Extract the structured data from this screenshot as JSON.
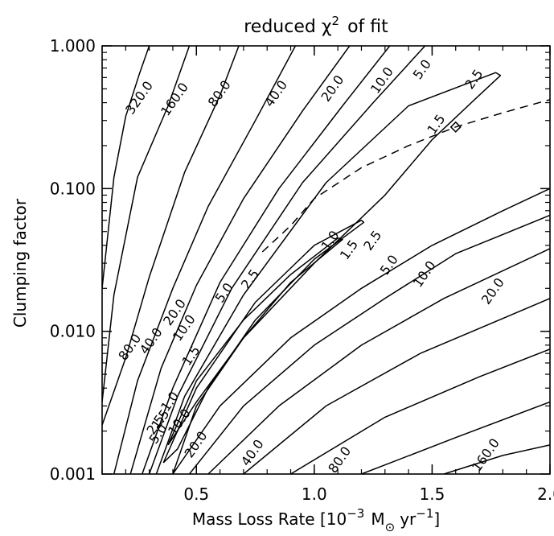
{
  "chart_data": {
    "type": "contour",
    "title": "reduced χ² of fit",
    "title_parts": {
      "base": "reduced χ",
      "sup": "2",
      "tail": "of fit"
    },
    "xlabel_parts": {
      "pre": "Mass Loss Rate [10",
      "sup1": "−3",
      "mid": "M",
      "sub": "⊙",
      "unit": "yr",
      "sup2": "−1",
      "post": "]"
    },
    "ylabel": "Clumping factor",
    "xlim": [
      0.1,
      2.0
    ],
    "ylim": [
      0.001,
      1.0
    ],
    "yscale": "log",
    "xticks": [
      {
        "value": 0.5,
        "label": "0.5"
      },
      {
        "value": 1.0,
        "label": "1.0"
      },
      {
        "value": 1.5,
        "label": "1.5"
      },
      {
        "value": 2.0,
        "label": "2.0"
      }
    ],
    "yticks": [
      {
        "value": 0.001,
        "label": "0.001"
      },
      {
        "value": 0.01,
        "label": "0.010"
      },
      {
        "value": 0.1,
        "label": "0.100"
      },
      {
        "value": 1.0,
        "label": "1.000"
      }
    ],
    "contour_levels": [
      1.0,
      1.5,
      2.5,
      5.0,
      10.0,
      20.0,
      40.0,
      80.0,
      160.0,
      320.0
    ],
    "contour_labels": [
      {
        "text": "320.0",
        "x": 0.26,
        "y": 0.43
      },
      {
        "text": "160.0",
        "x": 0.41,
        "y": 0.42
      },
      {
        "text": "80.0",
        "x": 0.6,
        "y": 0.46
      },
      {
        "text": "40.0",
        "x": 0.84,
        "y": 0.46
      },
      {
        "text": "20.0",
        "x": 1.08,
        "y": 0.5
      },
      {
        "text": "10.0",
        "x": 1.29,
        "y": 0.57
      },
      {
        "text": "5.0",
        "x": 1.46,
        "y": 0.68
      },
      {
        "text": "2.5",
        "x": 1.68,
        "y": 0.58
      },
      {
        "text": "1.5",
        "x": 1.52,
        "y": 0.28
      },
      {
        "text": "80.0",
        "x": 0.22,
        "y": 0.0077
      },
      {
        "text": "40.0",
        "x": 0.31,
        "y": 0.0085
      },
      {
        "text": "20.0",
        "x": 0.41,
        "y": 0.0135
      },
      {
        "text": "10.0",
        "x": 0.45,
        "y": 0.0105
      },
      {
        "text": "5.0",
        "x": 0.62,
        "y": 0.0185
      },
      {
        "text": "2.5",
        "x": 0.73,
        "y": 0.023
      },
      {
        "text": "1.0",
        "x": 1.07,
        "y": 0.043
      },
      {
        "text": "1.5",
        "x": 1.15,
        "y": 0.037
      },
      {
        "text": "2.5",
        "x": 1.25,
        "y": 0.043
      },
      {
        "text": "5.0",
        "x": 1.32,
        "y": 0.029
      },
      {
        "text": "10.0",
        "x": 1.47,
        "y": 0.025
      },
      {
        "text": "20.0",
        "x": 1.76,
        "y": 0.019
      },
      {
        "text": "1.5",
        "x": 0.48,
        "y": 0.0067
      },
      {
        "text": "1.0",
        "x": 0.39,
        "y": 0.0032
      },
      {
        "text": "1.5",
        "x": 0.35,
        "y": 0.0024
      },
      {
        "text": "2.5",
        "x": 0.33,
        "y": 0.0022
      },
      {
        "text": "5.0",
        "x": 0.34,
        "y": 0.0019
      },
      {
        "text": "10.0",
        "x": 0.43,
        "y": 0.0023
      },
      {
        "text": "20.0",
        "x": 0.5,
        "y": 0.0016
      },
      {
        "text": "40.0",
        "x": 0.74,
        "y": 0.0014
      },
      {
        "text": "80.0",
        "x": 1.11,
        "y": 0.00125
      },
      {
        "text": "160.0",
        "x": 1.73,
        "y": 0.00135
      }
    ],
    "contour_lines": [
      {
        "level": 320.0,
        "points": [
          [
            0.1,
            0.02
          ],
          [
            0.15,
            0.12
          ],
          [
            0.2,
            0.32
          ],
          [
            0.26,
            0.65
          ],
          [
            0.3,
            1.0
          ]
        ]
      },
      {
        "level": 160.0,
        "points": [
          [
            0.1,
            0.0032
          ],
          [
            0.15,
            0.018
          ],
          [
            0.25,
            0.12
          ],
          [
            0.38,
            0.38
          ],
          [
            0.47,
            1.0
          ]
        ]
      },
      {
        "level": 80.0,
        "points": [
          [
            0.1,
            0.0022
          ],
          [
            0.2,
            0.0065
          ],
          [
            0.3,
            0.024
          ],
          [
            0.45,
            0.13
          ],
          [
            0.6,
            0.45
          ],
          [
            0.68,
            1.0
          ]
        ]
      },
      {
        "level": 40.0,
        "points": [
          [
            0.15,
            0.001
          ],
          [
            0.25,
            0.0045
          ],
          [
            0.4,
            0.02
          ],
          [
            0.55,
            0.075
          ],
          [
            0.75,
            0.3
          ],
          [
            0.92,
            1.0
          ]
        ]
      },
      {
        "level": 20.0,
        "points": [
          [
            0.22,
            0.001
          ],
          [
            0.35,
            0.0055
          ],
          [
            0.5,
            0.021
          ],
          [
            0.7,
            0.085
          ],
          [
            0.95,
            0.35
          ],
          [
            1.15,
            1.0
          ]
        ]
      },
      {
        "level": 10.0,
        "points": [
          [
            0.27,
            0.001
          ],
          [
            0.4,
            0.004
          ],
          [
            0.6,
            0.022
          ],
          [
            0.85,
            0.1
          ],
          [
            1.12,
            0.38
          ],
          [
            1.32,
            1.0
          ]
        ]
      },
      {
        "level": 5.0,
        "points": [
          [
            0.3,
            0.001
          ],
          [
            0.42,
            0.0035
          ],
          [
            0.65,
            0.02
          ],
          [
            0.95,
            0.11
          ],
          [
            1.25,
            0.4
          ],
          [
            1.47,
            1.0
          ]
        ]
      },
      {
        "level": 2.5,
        "points": [
          [
            0.33,
            0.001
          ],
          [
            0.45,
            0.0035
          ],
          [
            0.7,
            0.018
          ],
          [
            1.05,
            0.11
          ],
          [
            1.4,
            0.38
          ],
          [
            1.77,
            0.65
          ],
          [
            1.79,
            0.62
          ],
          [
            1.68,
            0.42
          ],
          [
            1.5,
            0.22
          ],
          [
            1.3,
            0.09
          ],
          [
            1.0,
            0.03
          ],
          [
            0.7,
            0.009
          ],
          [
            0.5,
            0.003
          ],
          [
            0.4,
            0.001
          ]
        ]
      },
      {
        "level": 1.5,
        "points": [
          [
            0.36,
            0.0012
          ],
          [
            0.5,
            0.004
          ],
          [
            0.75,
            0.016
          ],
          [
            1.0,
            0.04
          ],
          [
            1.2,
            0.06
          ],
          [
            1.21,
            0.058
          ],
          [
            1.0,
            0.032
          ],
          [
            0.75,
            0.012
          ],
          [
            0.55,
            0.004
          ],
          [
            0.42,
            0.0015
          ],
          [
            0.36,
            0.0012
          ]
        ]
      },
      {
        "level": 1.0,
        "points": [
          [
            0.38,
            0.0016
          ],
          [
            0.5,
            0.0045
          ],
          [
            0.7,
            0.012
          ],
          [
            0.9,
            0.025
          ],
          [
            1.1,
            0.045
          ],
          [
            1.12,
            0.044
          ],
          [
            0.9,
            0.022
          ],
          [
            0.7,
            0.009
          ],
          [
            0.5,
            0.0032
          ],
          [
            0.38,
            0.0016
          ]
        ]
      },
      {
        "level": 2.5,
        "points": [
          [
            0.4,
            0.001
          ],
          [
            0.6,
            0.003
          ],
          [
            0.9,
            0.009
          ],
          [
            1.2,
            0.02
          ],
          [
            1.5,
            0.04
          ],
          [
            1.8,
            0.07
          ],
          [
            2.0,
            0.1
          ]
        ]
      },
      {
        "level": 5.0,
        "points": [
          [
            0.47,
            0.001
          ],
          [
            0.7,
            0.003
          ],
          [
            1.0,
            0.008
          ],
          [
            1.3,
            0.017
          ],
          [
            1.6,
            0.035
          ],
          [
            2.0,
            0.065
          ]
        ]
      },
      {
        "level": 10.0,
        "points": [
          [
            0.55,
            0.001
          ],
          [
            0.85,
            0.003
          ],
          [
            1.2,
            0.008
          ],
          [
            1.55,
            0.017
          ],
          [
            2.0,
            0.038
          ]
        ]
      },
      {
        "level": 20.0,
        "points": [
          [
            0.7,
            0.001
          ],
          [
            1.05,
            0.003
          ],
          [
            1.45,
            0.007
          ],
          [
            2.0,
            0.017
          ]
        ]
      },
      {
        "level": 40.0,
        "points": [
          [
            0.9,
            0.001
          ],
          [
            1.3,
            0.0025
          ],
          [
            1.7,
            0.0048
          ],
          [
            2.0,
            0.0075
          ]
        ]
      },
      {
        "level": 80.0,
        "points": [
          [
            1.2,
            0.001
          ],
          [
            1.6,
            0.0018
          ],
          [
            2.0,
            0.0032
          ]
        ]
      },
      {
        "level": 160.0,
        "points": [
          [
            1.55,
            0.001
          ],
          [
            1.8,
            0.00135
          ],
          [
            2.0,
            0.0016
          ]
        ]
      }
    ],
    "dashed_curve": [
      [
        0.78,
        0.036
      ],
      [
        0.9,
        0.055
      ],
      [
        1.0,
        0.085
      ],
      [
        1.2,
        0.14
      ],
      [
        1.4,
        0.2
      ],
      [
        1.6,
        0.27
      ],
      [
        1.8,
        0.34
      ],
      [
        2.0,
        0.42
      ]
    ],
    "best_fit_marker": {
      "x": 1.6,
      "y": 0.27
    },
    "grid": false,
    "legend": "none"
  }
}
